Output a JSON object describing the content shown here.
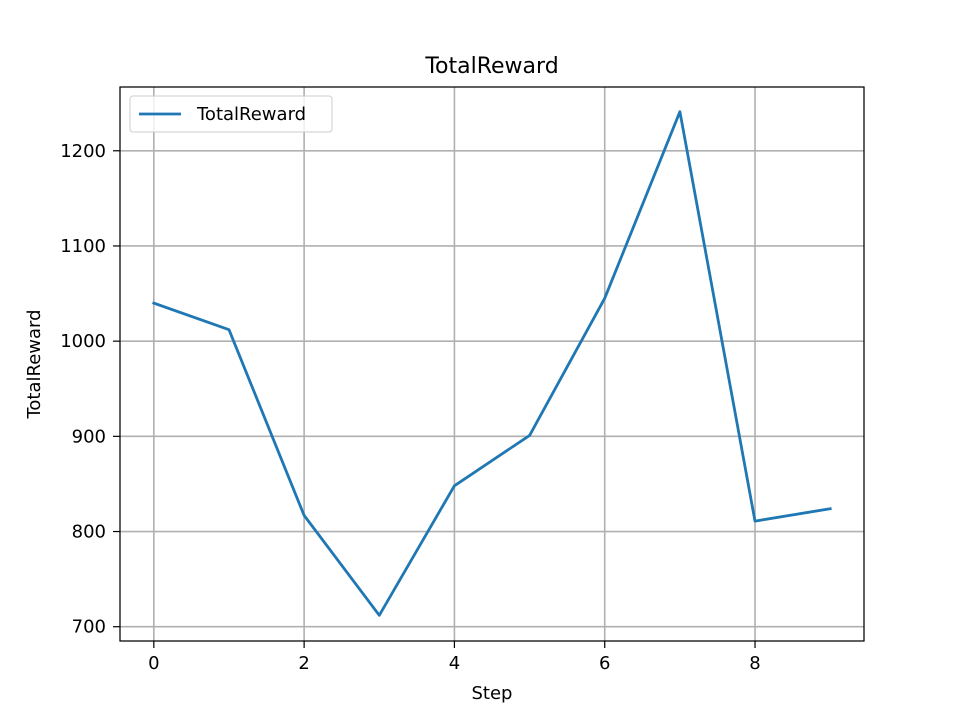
{
  "chart_data": {
    "type": "line",
    "title": "TotalReward",
    "xlabel": "Step",
    "ylabel": "TotalReward",
    "xlim": [
      -0.45,
      9.45
    ],
    "ylim": [
      685,
      1267
    ],
    "xticks": [
      0,
      2,
      4,
      6,
      8
    ],
    "yticks": [
      700,
      800,
      900,
      1000,
      1100,
      1200
    ],
    "grid": true,
    "legend_position": "upper-left",
    "series": [
      {
        "name": "TotalReward",
        "color": "#1f77b4",
        "x": [
          0,
          1,
          2,
          3,
          4,
          5,
          6,
          7,
          8,
          9
        ],
        "y": [
          1040,
          1012,
          817,
          712,
          848,
          901,
          1045,
          1241,
          811,
          824
        ]
      }
    ]
  }
}
